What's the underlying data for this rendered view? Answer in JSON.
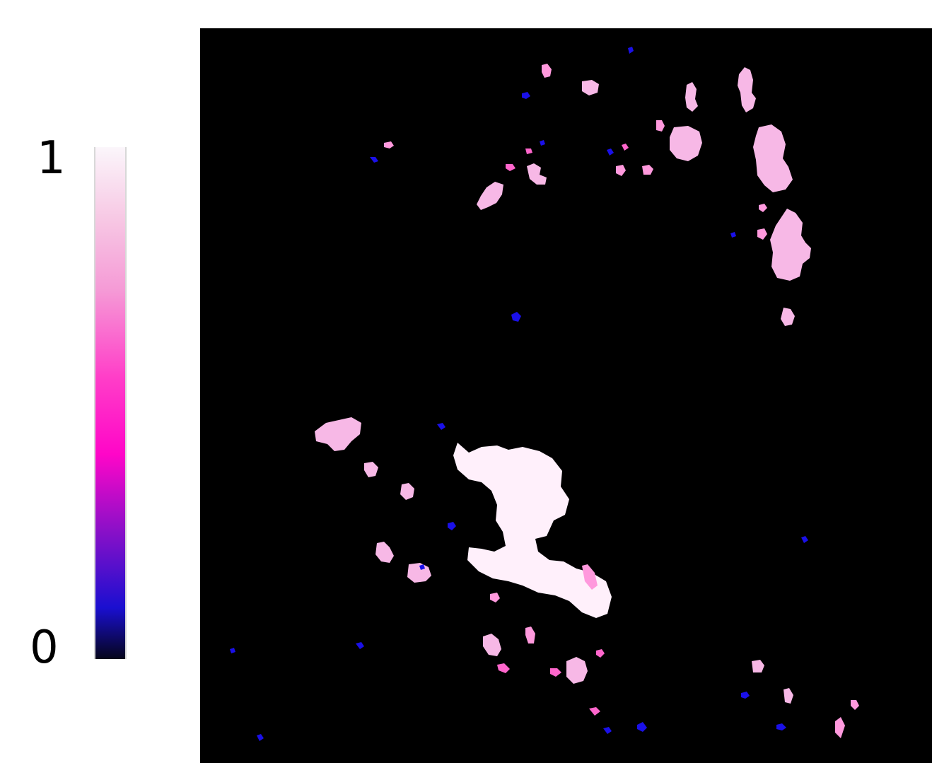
{
  "colorbar": {
    "max_label": "1",
    "min_label": "0",
    "range": [
      0,
      1
    ],
    "stops": [
      {
        "value": 0.0,
        "color": "#05051a"
      },
      {
        "value": 0.1,
        "color": "#1a0fd0"
      },
      {
        "value": 0.25,
        "color": "#8a10c8"
      },
      {
        "value": 0.4,
        "color": "#ff06c8"
      },
      {
        "value": 0.55,
        "color": "#ff3ec8"
      },
      {
        "value": 0.72,
        "color": "#f59ad6"
      },
      {
        "value": 0.86,
        "color": "#f7c8e4"
      },
      {
        "value": 1.0,
        "color": "#fbf6fb"
      }
    ]
  },
  "image": {
    "background_color": "#000000",
    "description_colors": {
      "low": "#1a10e8",
      "mid": "#ff66cc",
      "high": "#fff0fb"
    }
  }
}
